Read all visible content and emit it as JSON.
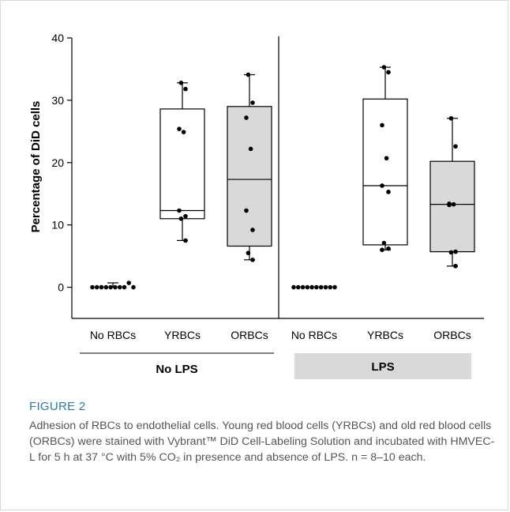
{
  "chart_data": {
    "type": "box",
    "ylabel": "Percentage of DiD cells",
    "ylim": [
      -5,
      40
    ],
    "yticks": [
      0,
      10,
      20,
      30,
      40
    ],
    "groups": [
      {
        "label": "No LPS",
        "shaded": false,
        "categories": [
          {
            "label": "No RBCs",
            "box": null,
            "points": [
              0,
              0,
              0,
              0,
              0,
              0,
              0,
              0,
              0.7,
              0
            ]
          },
          {
            "label": "YRBCs",
            "shaded": false,
            "box": {
              "min": 7.5,
              "q1": 11.0,
              "median": 12.3,
              "q3": 28.6,
              "max": 32.8
            },
            "points": [
              32.8,
              31.8,
              25.4,
              24.9,
              12.3,
              11.4,
              11.0,
              7.5
            ]
          },
          {
            "label": "ORBCs",
            "shaded": true,
            "box": {
              "min": 4.4,
              "q1": 6.6,
              "median": 17.3,
              "q3": 29.0,
              "max": 34.1
            },
            "points": [
              34.1,
              29.6,
              27.2,
              22.2,
              12.3,
              9.2,
              5.5,
              4.4
            ]
          }
        ]
      },
      {
        "label": "LPS",
        "shaded": true,
        "categories": [
          {
            "label": "No RBCs",
            "box": null,
            "points": [
              0,
              0,
              0,
              0,
              0,
              0,
              0,
              0,
              0,
              0
            ]
          },
          {
            "label": "YRBCs",
            "shaded": false,
            "box": {
              "min": 6.0,
              "q1": 6.8,
              "median": 16.3,
              "q3": 30.2,
              "max": 35.3
            },
            "points": [
              35.3,
              34.5,
              26.0,
              20.7,
              16.3,
              15.3,
              7.1,
              6.2,
              6.0
            ]
          },
          {
            "label": "ORBCs",
            "shaded": true,
            "box": {
              "min": 3.4,
              "q1": 5.7,
              "median": 13.3,
              "q3": 20.2,
              "max": 27.1
            },
            "points": [
              27.1,
              22.6,
              13.4,
              13.3,
              13.2,
              5.7,
              5.6,
              3.4
            ]
          }
        ]
      }
    ]
  },
  "caption": {
    "label": "FIGURE 2",
    "text": "Adhesion of RBCs to endothelial cells. Young red blood cells (YRBCs) and old red blood cells (ORBCs) were stained with Vybrant™ DiD Cell-Labeling Solution and incubated with HMVEC-L for 5 h at 37 °C with 5% CO₂ in presence and absence of LPS. n = 8–10 each."
  },
  "colors": {
    "box_fill_shaded": "#d9d9d9",
    "box_fill_plain": "#ffffff",
    "caption_label": "#2a7aa8",
    "caption_text": "#555555"
  }
}
